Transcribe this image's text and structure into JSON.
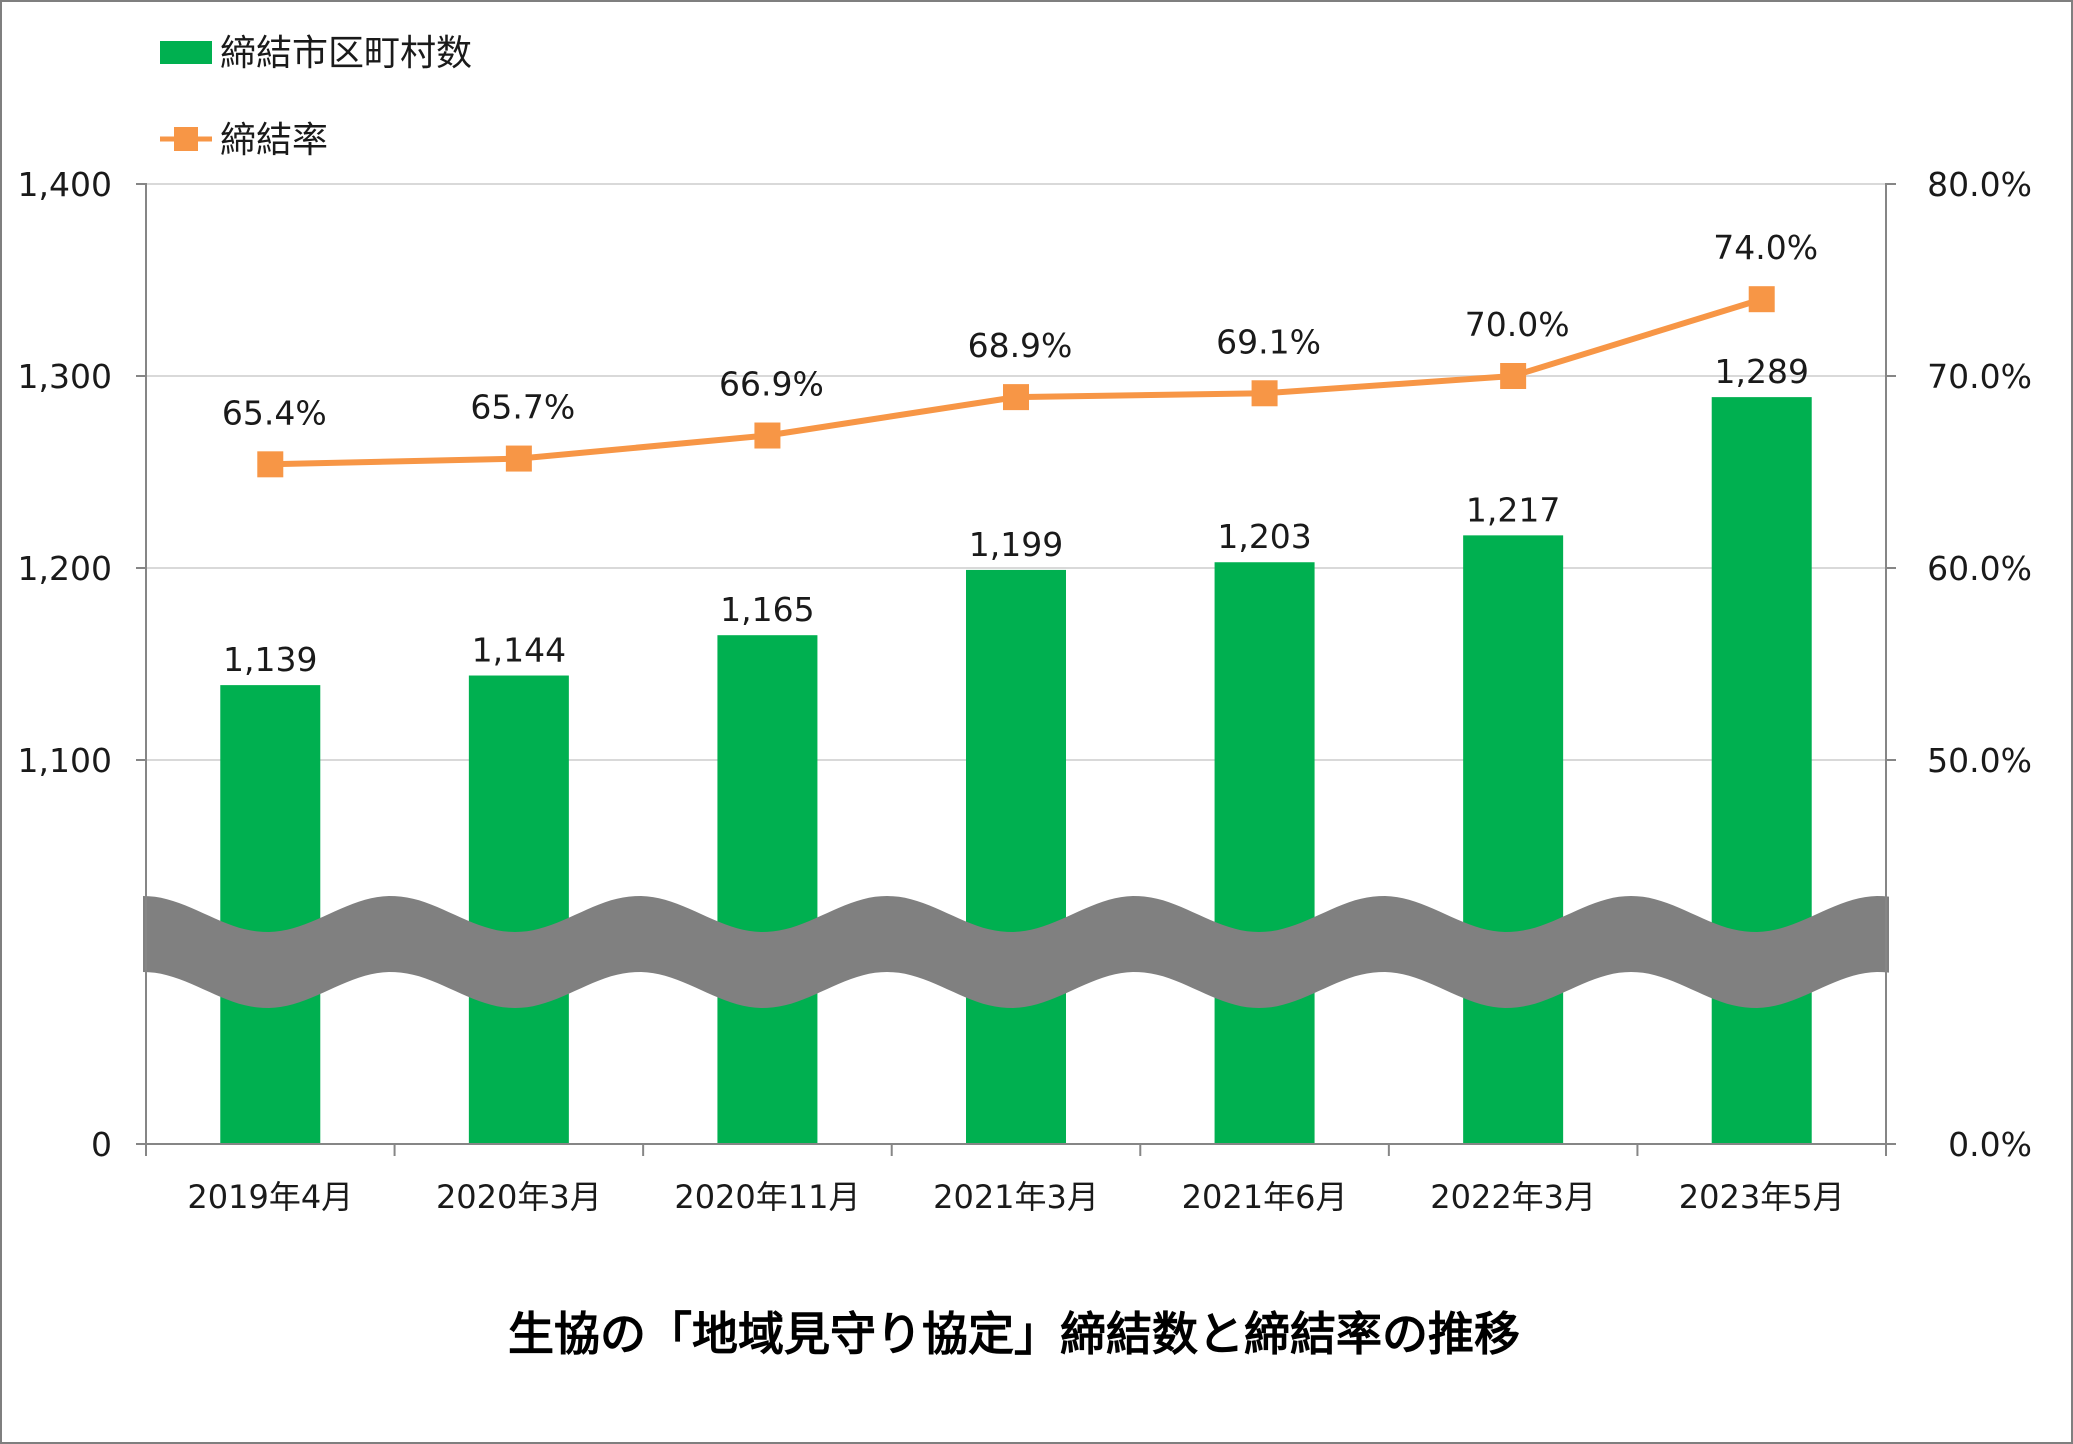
{
  "chart_data": {
    "type": "bar",
    "title": "生協の「地域見守り協定」締結数と締結率の推移",
    "categories": [
      "2019年4月",
      "2020年3月",
      "2020年11月",
      "2021年3月",
      "2021年6月",
      "2022年3月",
      "2023年5月"
    ],
    "series": [
      {
        "name": "締結市区町村数",
        "type": "bar",
        "axis": "left",
        "color": "#00b050",
        "values": [
          1139,
          1144,
          1165,
          1199,
          1203,
          1217,
          1289
        ],
        "labels": [
          "1,139",
          "1,144",
          "1,165",
          "1,199",
          "1,203",
          "1,217",
          "1,289"
        ]
      },
      {
        "name": "締結率",
        "type": "line",
        "axis": "right",
        "color": "#f79646",
        "marker": "square",
        "values": [
          65.4,
          65.7,
          66.9,
          68.9,
          69.1,
          70.0,
          74.0
        ],
        "labels": [
          "65.4%",
          "65.7%",
          "66.9%",
          "68.9%",
          "69.1%",
          "70.0%",
          "74.0%"
        ]
      }
    ],
    "left_axis": {
      "ticks": [
        0,
        1100,
        1200,
        1300,
        1400
      ],
      "tick_labels": [
        "0",
        "1,100",
        "1,200",
        "1,300",
        "1,400"
      ],
      "axis_break": true,
      "ylim": [
        0,
        1400
      ]
    },
    "right_axis": {
      "ticks": [
        0,
        50,
        60,
        70,
        80
      ],
      "tick_labels": [
        "0.0%",
        "50.0%",
        "60.0%",
        "70.0%",
        "80.0%"
      ],
      "axis_break": true,
      "ylim": [
        0,
        80
      ]
    },
    "gridlines": true,
    "legend_position": "top-left",
    "colors": {
      "bar": "#00b050",
      "line": "#f79646",
      "break_band": "#808080",
      "grid": "#d9d9d9",
      "axis": "#868686"
    }
  }
}
